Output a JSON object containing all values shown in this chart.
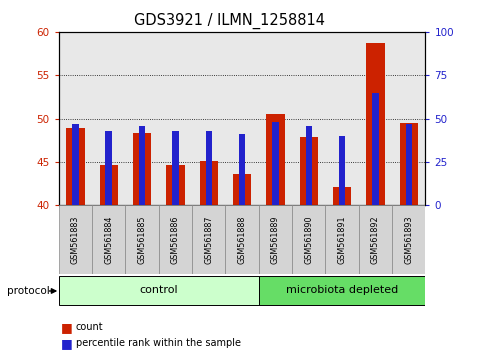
{
  "title": "GDS3921 / ILMN_1258814",
  "samples": [
    "GSM561883",
    "GSM561884",
    "GSM561885",
    "GSM561886",
    "GSM561887",
    "GSM561888",
    "GSM561889",
    "GSM561890",
    "GSM561891",
    "GSM561892",
    "GSM561893"
  ],
  "count_values": [
    48.9,
    44.7,
    48.3,
    44.6,
    45.1,
    43.6,
    50.5,
    47.9,
    42.1,
    58.7,
    49.5
  ],
  "percentile_values_pct": [
    47,
    43,
    46,
    43,
    43,
    41,
    48,
    46,
    40,
    65,
    47
  ],
  "y_min": 40,
  "y_max": 60,
  "y_ticks_left": [
    40,
    45,
    50,
    55,
    60
  ],
  "y_ticks_right": [
    0,
    25,
    50,
    75,
    100
  ],
  "groups": [
    {
      "label": "control",
      "start": 0,
      "end": 5,
      "color": "#ccffcc"
    },
    {
      "label": "microbiota depleted",
      "start": 6,
      "end": 10,
      "color": "#66dd66"
    }
  ],
  "bar_color_count": "#cc2200",
  "bar_color_percentile": "#2222cc",
  "bar_width": 0.55,
  "background_color": "#ffffff",
  "plot_bg_color": "#e8e8e8",
  "legend_count_label": "count",
  "legend_percentile_label": "percentile rank within the sample",
  "protocol_label": "protocol"
}
